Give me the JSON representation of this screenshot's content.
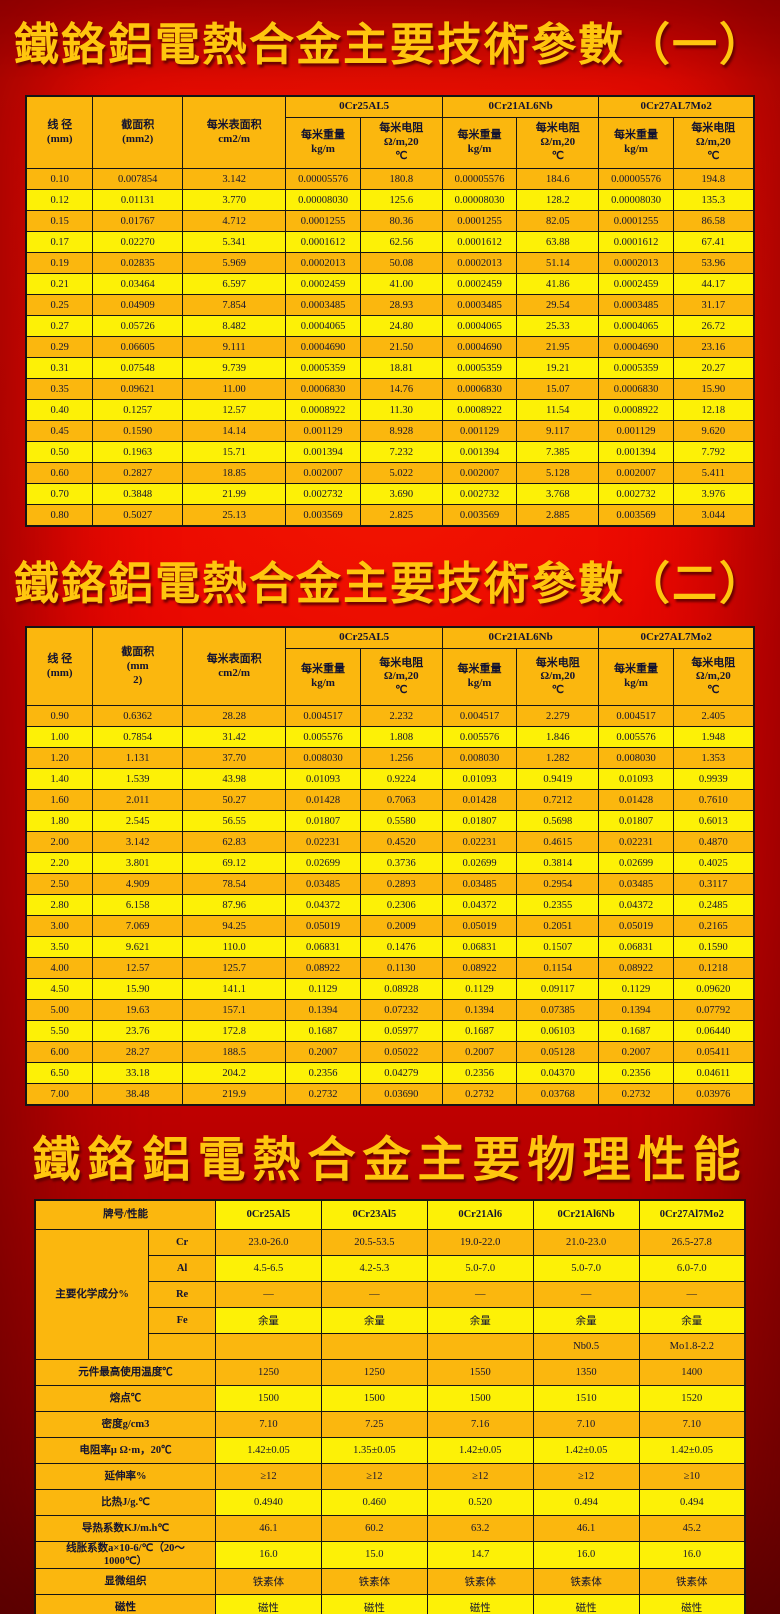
{
  "titles": {
    "t1": "鐵鉻鋁電熱合金主要技術參數（一）",
    "t2": "鐵鉻鋁電熱合金主要技術參數（二）",
    "t3": "鐵鉻鋁電熱合金主要物理性能"
  },
  "colors": {
    "background_red": "#e60000",
    "deep_red_edge": "#6f0000",
    "title_gold": "#ffc60e",
    "cell_amber": "#fbb70e",
    "cell_yellow": "#fdf106",
    "border_black": "#151515",
    "text_dark": "#131330"
  },
  "table1": {
    "corner_headers": [
      "线 径\n(mm)",
      "截面积\n(mm2)",
      "每米表面积\ncm2/m"
    ],
    "alloys": [
      "0Cr25AL5",
      "0Cr21AL6Nb",
      "0Cr27AL7Mo2"
    ],
    "sub_headers": [
      "每米重量\nkg/m",
      "每米电阻\nΩ/m,20\n℃"
    ],
    "rows": [
      [
        "0.10",
        "0.007854",
        "3.142",
        "0.00005576",
        "180.8",
        "0.00005576",
        "184.6",
        "0.00005576",
        "194.8"
      ],
      [
        "0.12",
        "0.01131",
        "3.770",
        "0.00008030",
        "125.6",
        "0.00008030",
        "128.2",
        "0.00008030",
        "135.3"
      ],
      [
        "0.15",
        "0.01767",
        "4.712",
        "0.0001255",
        "80.36",
        "0.0001255",
        "82.05",
        "0.0001255",
        "86.58"
      ],
      [
        "0.17",
        "0.02270",
        "5.341",
        "0.0001612",
        "62.56",
        "0.0001612",
        "63.88",
        "0.0001612",
        "67.41"
      ],
      [
        "0.19",
        "0.02835",
        "5.969",
        "0.0002013",
        "50.08",
        "0.0002013",
        "51.14",
        "0.0002013",
        "53.96"
      ],
      [
        "0.21",
        "0.03464",
        "6.597",
        "0.0002459",
        "41.00",
        "0.0002459",
        "41.86",
        "0.0002459",
        "44.17"
      ],
      [
        "0.25",
        "0.04909",
        "7.854",
        "0.0003485",
        "28.93",
        "0.0003485",
        "29.54",
        "0.0003485",
        "31.17"
      ],
      [
        "0.27",
        "0.05726",
        "8.482",
        "0.0004065",
        "24.80",
        "0.0004065",
        "25.33",
        "0.0004065",
        "26.72"
      ],
      [
        "0.29",
        "0.06605",
        "9.111",
        "0.0004690",
        "21.50",
        "0.0004690",
        "21.95",
        "0.0004690",
        "23.16"
      ],
      [
        "0.31",
        "0.07548",
        "9.739",
        "0.0005359",
        "18.81",
        "0.0005359",
        "19.21",
        "0.0005359",
        "20.27"
      ],
      [
        "0.35",
        "0.09621",
        "11.00",
        "0.0006830",
        "14.76",
        "0.0006830",
        "15.07",
        "0.0006830",
        "15.90"
      ],
      [
        "0.40",
        "0.1257",
        "12.57",
        "0.0008922",
        "11.30",
        "0.0008922",
        "11.54",
        "0.0008922",
        "12.18"
      ],
      [
        "0.45",
        "0.1590",
        "14.14",
        "0.001129",
        "8.928",
        "0.001129",
        "9.117",
        "0.001129",
        "9.620"
      ],
      [
        "0.50",
        "0.1963",
        "15.71",
        "0.001394",
        "7.232",
        "0.001394",
        "7.385",
        "0.001394",
        "7.792"
      ],
      [
        "0.60",
        "0.2827",
        "18.85",
        "0.002007",
        "5.022",
        "0.002007",
        "5.128",
        "0.002007",
        "5.411"
      ],
      [
        "0.70",
        "0.3848",
        "21.99",
        "0.002732",
        "3.690",
        "0.002732",
        "3.768",
        "0.002732",
        "3.976"
      ],
      [
        "0.80",
        "0.5027",
        "25.13",
        "0.003569",
        "2.825",
        "0.003569",
        "2.885",
        "0.003569",
        "3.044"
      ]
    ]
  },
  "table2": {
    "corner_headers": [
      "线 径\n(mm)",
      "截面积\n(mm\n2)",
      "每米表面积\ncm2/m"
    ],
    "alloys": [
      "0Cr25AL5",
      "0Cr21AL6Nb",
      "0Cr27AL7Mo2"
    ],
    "sub_headers": [
      "每米重量\nkg/m",
      "每米电阻\nΩ/m,20\n℃"
    ],
    "rows": [
      [
        "0.90",
        "0.6362",
        "28.28",
        "0.004517",
        "2.232",
        "0.004517",
        "2.279",
        "0.004517",
        "2.405"
      ],
      [
        "1.00",
        "0.7854",
        "31.42",
        "0.005576",
        "1.808",
        "0.005576",
        "1.846",
        "0.005576",
        "1.948"
      ],
      [
        "1.20",
        "1.131",
        "37.70",
        "0.008030",
        "1.256",
        "0.008030",
        "1.282",
        "0.008030",
        "1.353"
      ],
      [
        "1.40",
        "1.539",
        "43.98",
        "0.01093",
        "0.9224",
        "0.01093",
        "0.9419",
        "0.01093",
        "0.9939"
      ],
      [
        "1.60",
        "2.011",
        "50.27",
        "0.01428",
        "0.7063",
        "0.01428",
        "0.7212",
        "0.01428",
        "0.7610"
      ],
      [
        "1.80",
        "2.545",
        "56.55",
        "0.01807",
        "0.5580",
        "0.01807",
        "0.5698",
        "0.01807",
        "0.6013"
      ],
      [
        "2.00",
        "3.142",
        "62.83",
        "0.02231",
        "0.4520",
        "0.02231",
        "0.4615",
        "0.02231",
        "0.4870"
      ],
      [
        "2.20",
        "3.801",
        "69.12",
        "0.02699",
        "0.3736",
        "0.02699",
        "0.3814",
        "0.02699",
        "0.4025"
      ],
      [
        "2.50",
        "4.909",
        "78.54",
        "0.03485",
        "0.2893",
        "0.03485",
        "0.2954",
        "0.03485",
        "0.3117"
      ],
      [
        "2.80",
        "6.158",
        "87.96",
        "0.04372",
        "0.2306",
        "0.04372",
        "0.2355",
        "0.04372",
        "0.2485"
      ],
      [
        "3.00",
        "7.069",
        "94.25",
        "0.05019",
        "0.2009",
        "0.05019",
        "0.2051",
        "0.05019",
        "0.2165"
      ],
      [
        "3.50",
        "9.621",
        "110.0",
        "0.06831",
        "0.1476",
        "0.06831",
        "0.1507",
        "0.06831",
        "0.1590"
      ],
      [
        "4.00",
        "12.57",
        "125.7",
        "0.08922",
        "0.1130",
        "0.08922",
        "0.1154",
        "0.08922",
        "0.1218"
      ],
      [
        "4.50",
        "15.90",
        "141.1",
        "0.1129",
        "0.08928",
        "0.1129",
        "0.09117",
        "0.1129",
        "0.09620"
      ],
      [
        "5.00",
        "19.63",
        "157.1",
        "0.1394",
        "0.07232",
        "0.1394",
        "0.07385",
        "0.1394",
        "0.07792"
      ],
      [
        "5.50",
        "23.76",
        "172.8",
        "0.1687",
        "0.05977",
        "0.1687",
        "0.06103",
        "0.1687",
        "0.06440"
      ],
      [
        "6.00",
        "28.27",
        "188.5",
        "0.2007",
        "0.05022",
        "0.2007",
        "0.05128",
        "0.2007",
        "0.05411"
      ],
      [
        "6.50",
        "33.18",
        "204.2",
        "0.2356",
        "0.04279",
        "0.2356",
        "0.04370",
        "0.2356",
        "0.04611"
      ],
      [
        "7.00",
        "38.48",
        "219.9",
        "0.2732",
        "0.03690",
        "0.2732",
        "0.03768",
        "0.2732",
        "0.03976"
      ]
    ]
  },
  "table3": {
    "corner_label": "牌号/性能",
    "alloys": [
      "0Cr25Al5",
      "0Cr23Al5",
      "0Cr21Al6",
      "0Cr21Al6Nb",
      "0Cr27Al7Mo2"
    ],
    "chem_group_label": "主要化学成分%",
    "chem_rows": [
      {
        "element": "Cr",
        "values": [
          "23.0-26.0",
          "20.5-53.5",
          "19.0-22.0",
          "21.0-23.0",
          "26.5-27.8"
        ]
      },
      {
        "element": "Al",
        "values": [
          "4.5-6.5",
          "4.2-5.3",
          "5.0-7.0",
          "5.0-7.0",
          "6.0-7.0"
        ]
      },
      {
        "element": "Re",
        "values": [
          "—",
          "—",
          "—",
          "—",
          "—"
        ]
      },
      {
        "element": "Fe",
        "values": [
          "余量",
          "余量",
          "余量",
          "余量",
          "余量"
        ]
      },
      {
        "element": "",
        "values": [
          "",
          "",
          "",
          "Nb0.5",
          "Mo1.8-2.2"
        ]
      }
    ],
    "prop_rows": [
      {
        "label": "元件最高使用温度℃",
        "values": [
          "1250",
          "1250",
          "1550",
          "1350",
          "1400"
        ]
      },
      {
        "label": "熔点℃",
        "values": [
          "1500",
          "1500",
          "1500",
          "1510",
          "1520"
        ]
      },
      {
        "label": "密度g/cm3",
        "values": [
          "7.10",
          "7.25",
          "7.16",
          "7.10",
          "7.10"
        ]
      },
      {
        "label": "电阻率μ Ω·m，20℃",
        "values": [
          "1.42±0.05",
          "1.35±0.05",
          "1.42±0.05",
          "1.42±0.05",
          "1.42±0.05"
        ]
      },
      {
        "label": "延伸率%",
        "values": [
          "≥12",
          "≥12",
          "≥12",
          "≥12",
          "≥10"
        ]
      },
      {
        "label": "比热J/g.℃",
        "values": [
          "0.4940",
          "0.460",
          "0.520",
          "0.494",
          "0.494"
        ]
      },
      {
        "label": "导热系数KJ/m.h℃",
        "values": [
          "46.1",
          "60.2",
          "63.2",
          "46.1",
          "45.2"
        ]
      },
      {
        "label": "线胀系数a×10-6/℃（20～\n1000℃）",
        "values": [
          "16.0",
          "15.0",
          "14.7",
          "16.0",
          "16.0"
        ]
      },
      {
        "label": "显微组织",
        "values": [
          "铁素体",
          "铁素体",
          "铁素体",
          "铁素体",
          "铁素体"
        ]
      },
      {
        "label": "磁性",
        "values": [
          "磁性",
          "磁性",
          "磁性",
          "磁性",
          "磁性"
        ]
      }
    ]
  }
}
